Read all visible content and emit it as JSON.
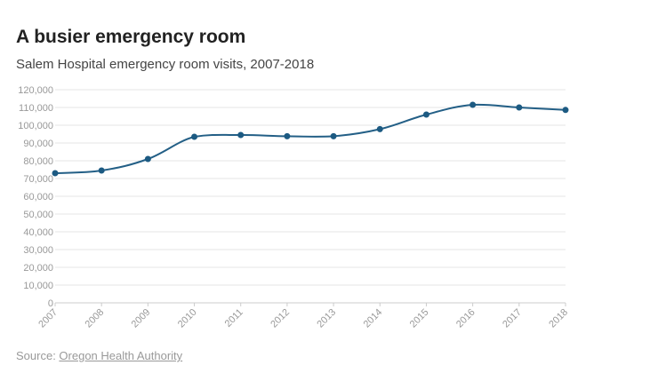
{
  "header": {
    "title": "A busier emergency room",
    "subtitle": "Salem Hospital emergency room visits, 2007-2018"
  },
  "footer": {
    "source_label": "Source: ",
    "source_link": "Oregon Health Authority"
  },
  "colors": {
    "line": "#235f86",
    "point": "#1c5a82",
    "grid": "#e6e6e6",
    "tick_text": "#999999"
  },
  "chart_data": {
    "type": "line",
    "title": "A busier emergency room",
    "subtitle": "Salem Hospital emergency room visits, 2007-2018",
    "xlabel": "",
    "ylabel": "",
    "x": [
      "2007",
      "2008",
      "2009",
      "2010",
      "2011",
      "2012",
      "2013",
      "2014",
      "2015",
      "2016",
      "2017",
      "2018"
    ],
    "series": [
      {
        "values": [
          73000,
          74500,
          81000,
          93500,
          94500,
          93800,
          93800,
          97800,
          106000,
          111500,
          110000,
          108600
        ]
      }
    ],
    "y_ticks": [
      "0",
      "10,000",
      "20,000",
      "30,000",
      "40,000",
      "50,000",
      "60,000",
      "70,000",
      "80,000",
      "90,000",
      "100,000",
      "110,000",
      "120,000"
    ],
    "ylim": [
      0,
      120000
    ],
    "grid": "horizontal",
    "legend": "none",
    "curve": "smooth"
  }
}
